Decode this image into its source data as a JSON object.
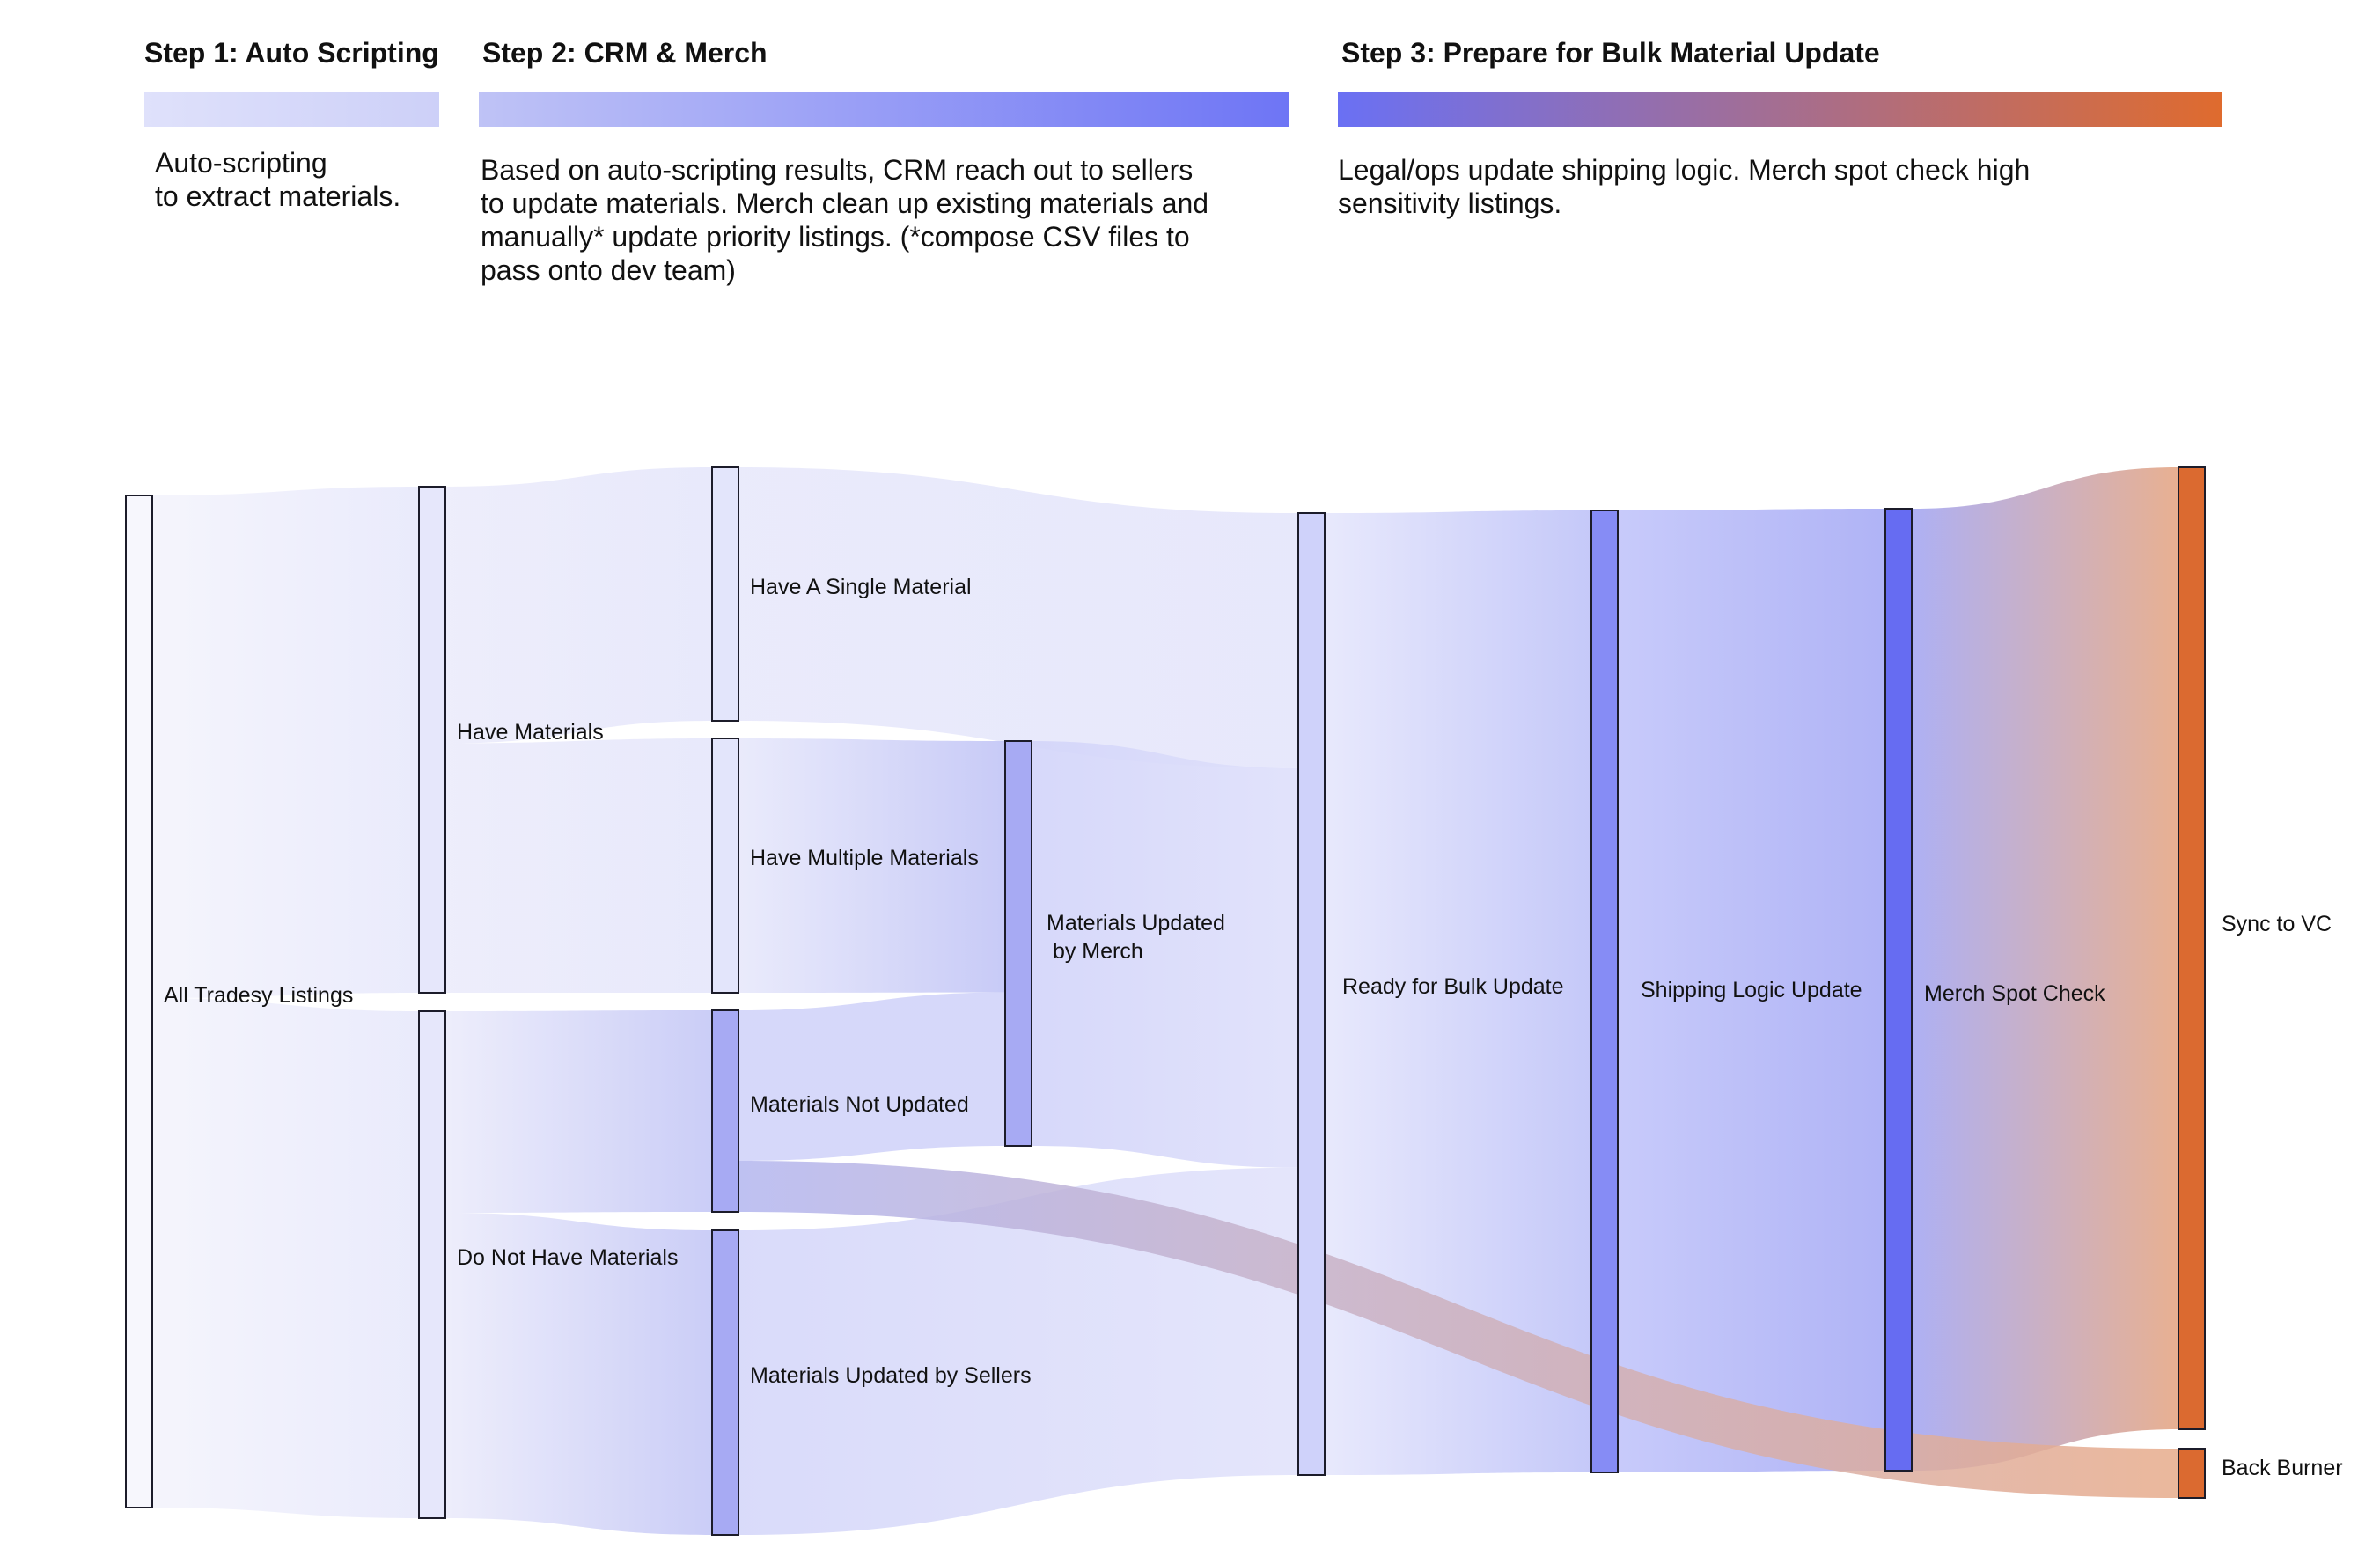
{
  "steps": [
    {
      "title": "Step 1: Auto Scripting",
      "description": "Auto-scripting\nto extract materials.",
      "gradient": [
        "#dfe1fb",
        "#cdd0f8"
      ]
    },
    {
      "title": "Step 2: CRM & Merch",
      "description": "Based on auto-scripting results, CRM reach out to sellers\nto update materials. Merch clean up existing materials and\nmanually* update priority listings. (*compose CSV files to\npass onto dev team)",
      "gradient": [
        "#bfc3f6",
        "#6e75f5"
      ]
    },
    {
      "title": "Step 3: Prepare for Bulk Material Update",
      "description": "Legal/ops update shipping logic. Merch spot check high\nsensitivity listings.",
      "gradient": [
        "#6a70f4",
        "#df6b2e"
      ]
    }
  ],
  "nodes": [
    {
      "id": "all",
      "label": "All Tradesy Listings",
      "color": "#f7f7fd"
    },
    {
      "id": "have",
      "label": "Have Materials",
      "color": "#e6e7fb"
    },
    {
      "id": "donot",
      "label": "Do Not Have Materials",
      "color": "#e6e7fb"
    },
    {
      "id": "single",
      "label": "Have A Single Material",
      "color": "#e3e5fb"
    },
    {
      "id": "multiple",
      "label": "Have Multiple Materials",
      "color": "#e3e5fb"
    },
    {
      "id": "notupdated",
      "label": "Materials Not Updated",
      "color": "#a7aaf3"
    },
    {
      "id": "sellers",
      "label": "Materials Updated by Sellers",
      "color": "#a7aaf3"
    },
    {
      "id": "merch",
      "label": "Materials Updated\n by Merch",
      "color": "#a7aaf3"
    },
    {
      "id": "ready",
      "label": "Ready for Bulk Update",
      "color": "#cfd2fa"
    },
    {
      "id": "shipping",
      "label": "Shipping Logic Update",
      "color": "#868cf5"
    },
    {
      "id": "spot",
      "label": "Merch Spot Check",
      "color": "#666cf2"
    },
    {
      "id": "sync",
      "label": "Sync to VC",
      "color": "#db6a30"
    },
    {
      "id": "burner",
      "label": "Back Burner",
      "color": "#db6a30"
    }
  ],
  "flows": [
    {
      "source": "all",
      "target": "have",
      "value": 568,
      "colors": [
        "#f4f4fc",
        "#e8e9fb"
      ]
    },
    {
      "source": "all",
      "target": "donot",
      "value": 576,
      "colors": [
        "#f4f4fc",
        "#e8e9fb"
      ]
    },
    {
      "source": "have",
      "target": "single",
      "value": 288,
      "colors": [
        "#ececfb",
        "#e6e7fb"
      ]
    },
    {
      "source": "have",
      "target": "multiple",
      "value": 280,
      "colors": [
        "#ececfb",
        "#e6e7fb"
      ]
    },
    {
      "source": "donot",
      "target": "notupdated",
      "value": 229,
      "colors": [
        "#ececfb",
        "#c6c9f6"
      ]
    },
    {
      "source": "donot",
      "target": "sellers",
      "value": 347,
      "colors": [
        "#ececfb",
        "#c6c9f6"
      ]
    },
    {
      "source": "single",
      "target": "ready",
      "value": 288,
      "colors": [
        "#e8e9fb",
        "#e5e6fb"
      ]
    },
    {
      "source": "multiple",
      "target": "merch",
      "value": 280,
      "colors": [
        "#e8e9fb",
        "#c3c6f6"
      ]
    },
    {
      "source": "notupdated",
      "target": "merch",
      "value": 171,
      "colors": [
        "#d3d5f9",
        "#d3d5f9"
      ]
    },
    {
      "source": "notupdated",
      "target": "burner",
      "value": 58,
      "colors": [
        "#b3b6ef",
        "#e7ab8b"
      ]
    },
    {
      "source": "merch",
      "target": "ready",
      "value": 451,
      "colors": [
        "#d3d5f9",
        "#dfe0fb"
      ]
    },
    {
      "source": "sellers",
      "target": "ready",
      "value": 347,
      "colors": [
        "#d6d8f9",
        "#e2e3fb"
      ]
    },
    {
      "source": "ready",
      "target": "shipping",
      "value": 1086,
      "colors": [
        "#e6e7fc",
        "#c0c4f8"
      ]
    },
    {
      "source": "shipping",
      "target": "spot",
      "value": 1086,
      "colors": [
        "#c3c6fa",
        "#a9adf5"
      ]
    },
    {
      "source": "spot",
      "target": "sync",
      "value": 1086,
      "colors": [
        "#a7aaf3",
        "#e6a988"
      ]
    }
  ]
}
